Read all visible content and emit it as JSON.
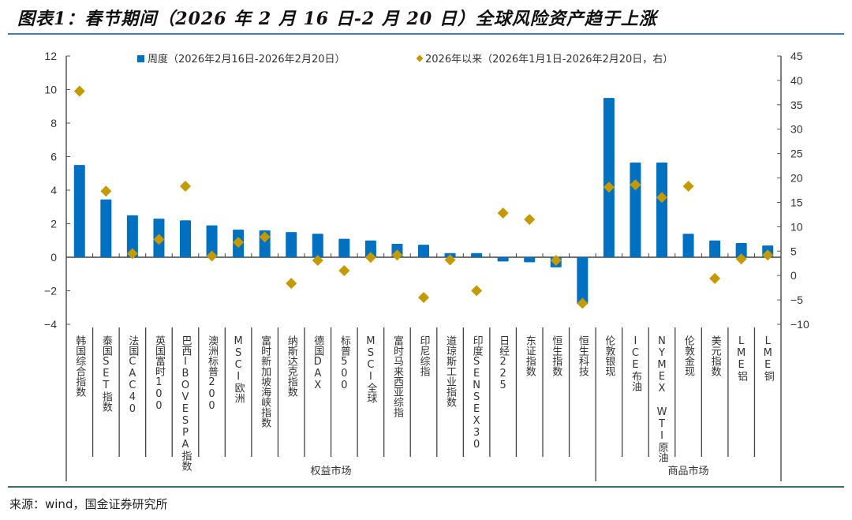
{
  "header": {
    "title": "图表1：春节期间（2026 年 2 月 16 日-2 月 20 日）全球风险资产趋于上涨"
  },
  "footer": {
    "source": "来源：wind，国金证券研究所"
  },
  "colors": {
    "bar": "#0070c0",
    "diamond": "#c49a00",
    "title_rule": "#4a7fa0",
    "footer_rule": "#3d6e75"
  },
  "chart_data": {
    "type": "bar",
    "title": "",
    "xlabel": "",
    "ylabel": "",
    "legend_position": "top",
    "grid": false,
    "ylim": [
      -4,
      12
    ],
    "yticks": [
      "12",
      "10",
      "8",
      "6",
      "4",
      "2",
      "0",
      "-2",
      "-4"
    ],
    "ylim_right": [
      -10,
      45
    ],
    "yticks_right": [
      "45",
      "40",
      "35",
      "30",
      "25",
      "20",
      "15",
      "10",
      "5",
      "0",
      "-5",
      "-10"
    ],
    "categories": [
      "韩国综合指数",
      "泰国SET指数",
      "法国CAC40",
      "英国富时100",
      "巴西IBOVESPA指数",
      "澳洲标普200",
      "MSCI欧洲",
      "富时新加坡海峡指数",
      "纳斯达克指数",
      "德国DAX",
      "标普500",
      "MSCI全球",
      "富时马来西亚综指",
      "印尼综指",
      "道琼斯工业指数",
      "印度SENSEX30",
      "日经225",
      "东证指数",
      "恒生指数",
      "恒生科技",
      "伦敦银现",
      "ICE布油",
      "NYMEX WTI原油",
      "伦敦金现",
      "美元指数",
      "LME铝",
      "LME铜"
    ],
    "groups": [
      {
        "label": "权益市场",
        "start": 0,
        "end": 19
      },
      {
        "label": "商品市场",
        "start": 20,
        "end": 26
      }
    ],
    "series": [
      {
        "name": "周度（2026年2月16日-2026年2月20日）",
        "type": "bar",
        "axis": "left",
        "values": [
          5.5,
          3.45,
          2.5,
          2.3,
          2.2,
          1.9,
          1.65,
          1.6,
          1.5,
          1.4,
          1.1,
          1.0,
          0.8,
          0.75,
          0.25,
          0.25,
          -0.25,
          -0.3,
          -0.6,
          -2.8,
          9.5,
          5.65,
          5.65,
          1.4,
          1.0,
          0.85,
          0.7
        ]
      },
      {
        "name": "2026年以来（2026年1月1日-2026年2月20日，右）",
        "type": "scatter",
        "axis": "right",
        "values": [
          37.8,
          17.3,
          4.5,
          7.4,
          18.3,
          4.0,
          6.8,
          7.9,
          -1.6,
          3.1,
          1.0,
          3.7,
          4.2,
          -4.5,
          3.2,
          -3.1,
          12.8,
          11.5,
          3.1,
          -5.7,
          18.1,
          18.6,
          16.0,
          18.3,
          -0.6,
          3.4,
          4.2
        ]
      }
    ]
  }
}
